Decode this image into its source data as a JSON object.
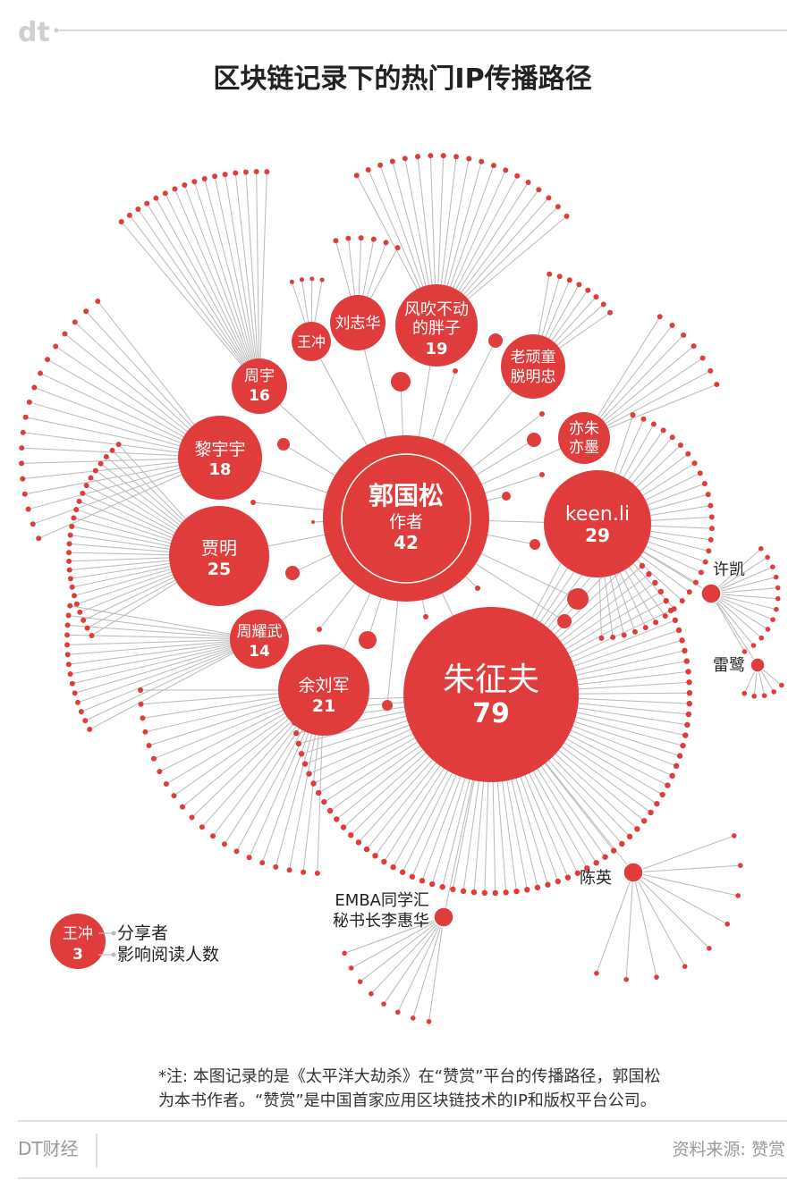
{
  "header": {
    "logo_text": "dt",
    "title": "区块链记录下的热门IP传播路径"
  },
  "colors": {
    "red": "#e03c3c",
    "line": "#b9b9b9",
    "text_dark": "#222222",
    "text_gray": "#9a9a9a"
  },
  "center_node": {
    "name": "郭国松",
    "role": "作者",
    "value": "42"
  },
  "nodes": [
    {
      "id": "zhu",
      "name": "朱征夫",
      "value": "79"
    },
    {
      "id": "keen",
      "name": "keen.li",
      "value": "29"
    },
    {
      "id": "jia",
      "name": "贾明",
      "value": "25"
    },
    {
      "id": "yu",
      "name": "余刘军",
      "value": "21"
    },
    {
      "id": "feng",
      "name": "风吹不动的胖子",
      "name_lines": [
        "风吹不动",
        "的胖子"
      ],
      "value": "19"
    },
    {
      "id": "li",
      "name": "黎宇宇",
      "value": "18"
    },
    {
      "id": "zhouyu",
      "name": "周宇",
      "value": "16"
    },
    {
      "id": "zhouyw",
      "name": "周耀武",
      "value": "14"
    },
    {
      "id": "lao",
      "name": "老顽童脱明忠",
      "name_lines": [
        "老顽童",
        "脱明忠"
      ],
      "value": ""
    },
    {
      "id": "yizhu",
      "name": "亦朱亦墨",
      "name_lines": [
        "亦朱",
        "亦墨"
      ],
      "value": ""
    },
    {
      "id": "liuzh",
      "name": "刘志华",
      "value": ""
    },
    {
      "id": "wang",
      "name": "王冲",
      "value": ""
    }
  ],
  "outer_labels": {
    "xukai": "许凯",
    "leilu": "雷鹭",
    "chenying": "陈英",
    "emba_line1": "EMBA同学汇",
    "emba_line2": "秘书长李惠华"
  },
  "legend": {
    "name": "王冲",
    "value": "3",
    "sharer_label": "分享者",
    "reads_label": "影响阅读人数"
  },
  "note": {
    "line1": "*注: 本图记录的是《太平洋大劫杀》在“赞赏”平台的传播路径，郭国松",
    "line2": "为本书作者。“赞赏”是中国首家应用区块链技术的IP和版权平台公司。"
  },
  "footer": {
    "brand": "DT财经",
    "source": "资料来源: 赞赏"
  }
}
